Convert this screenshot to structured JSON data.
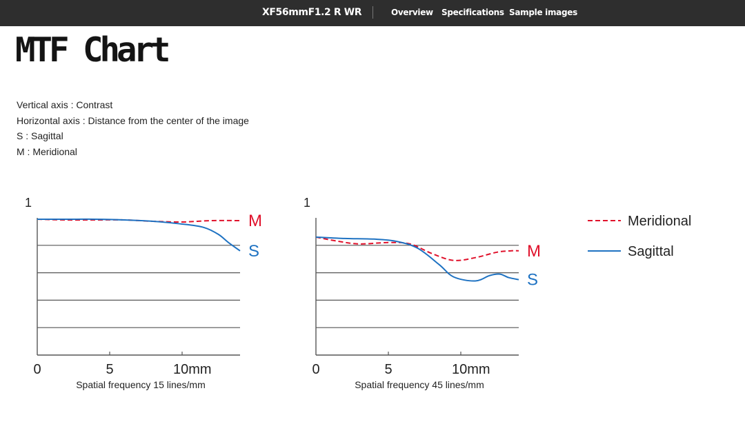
{
  "header": {
    "product_name": "XF56mmF1.2 R WR",
    "nav": [
      "Overview",
      "Specifications",
      "Sample images"
    ]
  },
  "page_title": "MTF Chart",
  "description": [
    "Vertical axis : Contrast",
    "Horizontal axis : Distance from the center of the image",
    "S : Sagittal",
    "M : Meridional"
  ],
  "legend": {
    "meridional_label": "Meridional",
    "sagittal_label": "Sagittal"
  },
  "colors": {
    "meridional": "#e0102a",
    "sagittal": "#1e72c2",
    "grid": "#555555",
    "header_bg": "#2e2e2e"
  },
  "chart_data": [
    {
      "type": "line",
      "title": "Spatial frequency 15 lines/mm",
      "y_top_label": "1",
      "xlim": [
        0,
        14
      ],
      "ylim": [
        0,
        1
      ],
      "x_ticks": [
        0,
        5,
        10
      ],
      "x_tick_labels": [
        "0",
        "5",
        "10mm"
      ],
      "grid_y": [
        0.2,
        0.4,
        0.6,
        0.8
      ],
      "legend": "top-right",
      "series": [
        {
          "name": "M",
          "style": "dashed",
          "points": [
            [
              0,
              0.99
            ],
            [
              2,
              0.985
            ],
            [
              4,
              0.985
            ],
            [
              6,
              0.985
            ],
            [
              8,
              0.975
            ],
            [
              10,
              0.97
            ],
            [
              12,
              0.98
            ],
            [
              14,
              0.98
            ]
          ]
        },
        {
          "name": "S",
          "style": "solid",
          "points": [
            [
              0,
              0.99
            ],
            [
              2,
              0.99
            ],
            [
              4,
              0.99
            ],
            [
              6,
              0.985
            ],
            [
              8,
              0.975
            ],
            [
              10,
              0.955
            ],
            [
              11.5,
              0.93
            ],
            [
              12.5,
              0.88
            ],
            [
              13.2,
              0.82
            ],
            [
              14,
              0.76
            ]
          ]
        }
      ]
    },
    {
      "type": "line",
      "title": "Spatial frequency 45 lines/mm",
      "y_top_label": "1",
      "xlim": [
        0,
        14
      ],
      "ylim": [
        0,
        1
      ],
      "x_ticks": [
        0,
        5,
        10
      ],
      "x_tick_labels": [
        "0",
        "5",
        "10mm"
      ],
      "grid_y": [
        0.2,
        0.4,
        0.6,
        0.8
      ],
      "legend": "top-right",
      "series": [
        {
          "name": "M",
          "style": "dashed",
          "points": [
            [
              0,
              0.86
            ],
            [
              1.5,
              0.83
            ],
            [
              3,
              0.81
            ],
            [
              5,
              0.82
            ],
            [
              6.5,
              0.81
            ],
            [
              8,
              0.74
            ],
            [
              9.5,
              0.69
            ],
            [
              11,
              0.71
            ],
            [
              12.5,
              0.75
            ],
            [
              13.5,
              0.76
            ],
            [
              14,
              0.76
            ]
          ]
        },
        {
          "name": "S",
          "style": "solid",
          "points": [
            [
              0,
              0.86
            ],
            [
              2,
              0.85
            ],
            [
              4,
              0.845
            ],
            [
              5.5,
              0.83
            ],
            [
              7,
              0.78
            ],
            [
              8.5,
              0.66
            ],
            [
              9.5,
              0.57
            ],
            [
              11,
              0.54
            ],
            [
              12,
              0.58
            ],
            [
              12.7,
              0.59
            ],
            [
              13.3,
              0.565
            ],
            [
              14,
              0.55
            ]
          ]
        }
      ]
    }
  ]
}
